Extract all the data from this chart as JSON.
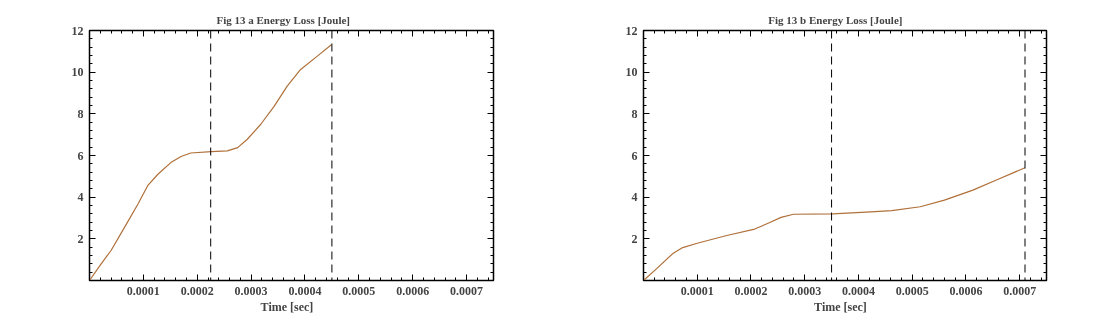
{
  "chart_data": [
    {
      "type": "line",
      "title": "Fig 13 a    Energy Loss    [Joule]",
      "xlabel": "Time    [sec]",
      "x": [
        0,
        2.16e-05,
        4e-05,
        6.5e-05,
        9e-05,
        0.000108,
        0.000127,
        0.000151,
        0.00017,
        0.000188,
        0.000226,
        0.000256,
        0.000275,
        0.000293,
        0.000318,
        0.000343,
        0.000367,
        0.000392,
        0.000423,
        0.000449
      ],
      "series": [
        {
          "color": "#b0703a",
          "values": [
            0,
            0.8,
            1.44,
            2.55,
            3.67,
            4.55,
            5.1,
            5.66,
            5.95,
            6.12,
            6.19,
            6.22,
            6.38,
            6.78,
            7.5,
            8.37,
            9.33,
            10.13,
            10.77,
            11.32
          ]
        }
      ],
      "xlim": [
        0,
        0.00075
      ],
      "ylim": [
        0,
        12
      ],
      "xticks": [
        0.0001,
        0.0002,
        0.0003,
        0.0004,
        0.0005,
        0.0006,
        0.0007
      ],
      "yticks": [
        2,
        4,
        6,
        8,
        10,
        12
      ],
      "ref_lines": [
        {
          "axis": "x",
          "value": 0.000225,
          "color": "#000000",
          "line_style": "dashed"
        },
        {
          "axis": "x",
          "value": 0.00045,
          "color": "#000000",
          "line_style": "dashed"
        }
      ],
      "line_style": "solid"
    },
    {
      "type": "line",
      "title": "Fig 13 b   Energy  Loss     [Joule]",
      "xlabel": "Time    [sec]",
      "x": [
        0,
        2.4e-05,
        5.4e-05,
        7.3e-05,
        0.0001,
        0.000155,
        0.000207,
        0.000233,
        0.000256,
        0.000279,
        0.000352,
        0.000423,
        0.000462,
        0.000515,
        0.00056,
        0.000613,
        0.000659,
        0.00071
      ],
      "series": [
        {
          "color": "#b0703a",
          "values": [
            0,
            0.56,
            1.28,
            1.58,
            1.79,
            2.16,
            2.47,
            2.76,
            3.03,
            3.18,
            3.2,
            3.29,
            3.35,
            3.54,
            3.86,
            4.34,
            4.85,
            5.41
          ]
        }
      ],
      "xlim": [
        0,
        0.00075
      ],
      "ylim": [
        0,
        12
      ],
      "xticks": [
        0.0001,
        0.0002,
        0.0003,
        0.0004,
        0.0005,
        0.0006,
        0.0007
      ],
      "yticks": [
        2,
        4,
        6,
        8,
        10,
        12
      ],
      "ref_lines": [
        {
          "axis": "x",
          "value": 0.00035,
          "color": "#000000",
          "line_style": "dashed"
        },
        {
          "axis": "x",
          "value": 0.00071,
          "color": "#000000",
          "line_style": "dashed"
        }
      ],
      "line_style": "solid"
    }
  ]
}
